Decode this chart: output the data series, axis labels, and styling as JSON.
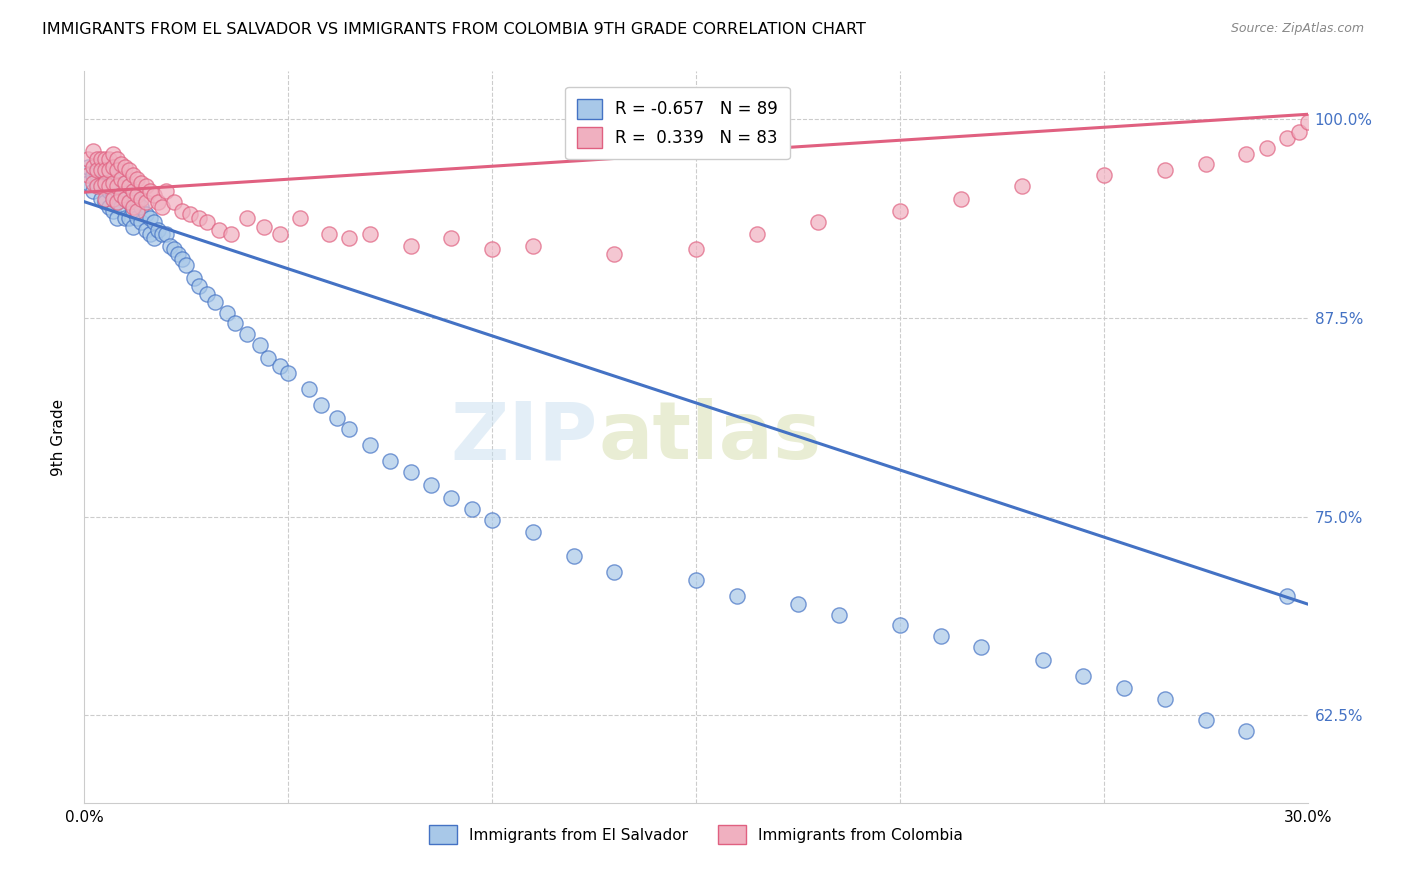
{
  "title": "IMMIGRANTS FROM EL SALVADOR VS IMMIGRANTS FROM COLOMBIA 9TH GRADE CORRELATION CHART",
  "source": "Source: ZipAtlas.com",
  "ylabel": "9th Grade",
  "yticks": [
    "100.0%",
    "87.5%",
    "75.0%",
    "62.5%"
  ],
  "ytick_vals": [
    1.0,
    0.875,
    0.75,
    0.625
  ],
  "legend_el_salvador": "R = -0.657   N = 89",
  "legend_colombia": "R =  0.339   N = 83",
  "legend_label_salvador": "Immigrants from El Salvador",
  "legend_label_colombia": "Immigrants from Colombia",
  "color_salvador": "#a8c8e8",
  "color_colombia": "#f0b0c0",
  "color_salvador_line": "#4472c4",
  "color_colombia_line": "#e06080",
  "watermark_zip": "ZIP",
  "watermark_atlas": "atlas",
  "xlim": [
    0.0,
    0.3
  ],
  "ylim": [
    0.57,
    1.03
  ],
  "salvador_line_x": [
    0.0,
    0.3
  ],
  "salvador_line_y": [
    0.948,
    0.695
  ],
  "colombia_line_x": [
    0.0,
    0.3
  ],
  "colombia_line_y": [
    0.954,
    1.003
  ],
  "salvador_x": [
    0.001,
    0.001,
    0.002,
    0.002,
    0.003,
    0.003,
    0.003,
    0.004,
    0.004,
    0.004,
    0.005,
    0.005,
    0.005,
    0.006,
    0.006,
    0.006,
    0.007,
    0.007,
    0.007,
    0.008,
    0.008,
    0.008,
    0.009,
    0.009,
    0.01,
    0.01,
    0.01,
    0.011,
    0.011,
    0.012,
    0.012,
    0.012,
    0.013,
    0.013,
    0.014,
    0.014,
    0.015,
    0.015,
    0.016,
    0.016,
    0.017,
    0.017,
    0.018,
    0.019,
    0.02,
    0.021,
    0.022,
    0.023,
    0.024,
    0.025,
    0.027,
    0.028,
    0.03,
    0.032,
    0.035,
    0.037,
    0.04,
    0.043,
    0.045,
    0.048,
    0.05,
    0.055,
    0.058,
    0.062,
    0.065,
    0.07,
    0.075,
    0.08,
    0.085,
    0.09,
    0.095,
    0.1,
    0.11,
    0.12,
    0.13,
    0.15,
    0.16,
    0.175,
    0.185,
    0.2,
    0.21,
    0.22,
    0.235,
    0.245,
    0.255,
    0.265,
    0.275,
    0.285,
    0.295
  ],
  "salvador_y": [
    0.97,
    0.96,
    0.965,
    0.955,
    0.97,
    0.965,
    0.96,
    0.97,
    0.96,
    0.95,
    0.968,
    0.958,
    0.948,
    0.965,
    0.955,
    0.945,
    0.962,
    0.952,
    0.942,
    0.958,
    0.948,
    0.938,
    0.955,
    0.945,
    0.96,
    0.95,
    0.938,
    0.948,
    0.938,
    0.952,
    0.942,
    0.932,
    0.948,
    0.938,
    0.945,
    0.935,
    0.94,
    0.93,
    0.938,
    0.928,
    0.935,
    0.925,
    0.93,
    0.928,
    0.928,
    0.92,
    0.918,
    0.915,
    0.912,
    0.908,
    0.9,
    0.895,
    0.89,
    0.885,
    0.878,
    0.872,
    0.865,
    0.858,
    0.85,
    0.845,
    0.84,
    0.83,
    0.82,
    0.812,
    0.805,
    0.795,
    0.785,
    0.778,
    0.77,
    0.762,
    0.755,
    0.748,
    0.74,
    0.725,
    0.715,
    0.71,
    0.7,
    0.695,
    0.688,
    0.682,
    0.675,
    0.668,
    0.66,
    0.65,
    0.642,
    0.635,
    0.622,
    0.615,
    0.7
  ],
  "colombia_x": [
    0.001,
    0.001,
    0.002,
    0.002,
    0.002,
    0.003,
    0.003,
    0.003,
    0.004,
    0.004,
    0.004,
    0.005,
    0.005,
    0.005,
    0.005,
    0.006,
    0.006,
    0.006,
    0.007,
    0.007,
    0.007,
    0.007,
    0.008,
    0.008,
    0.008,
    0.008,
    0.009,
    0.009,
    0.009,
    0.01,
    0.01,
    0.01,
    0.011,
    0.011,
    0.011,
    0.012,
    0.012,
    0.012,
    0.013,
    0.013,
    0.013,
    0.014,
    0.014,
    0.015,
    0.015,
    0.016,
    0.017,
    0.018,
    0.019,
    0.02,
    0.022,
    0.024,
    0.026,
    0.028,
    0.03,
    0.033,
    0.036,
    0.04,
    0.044,
    0.048,
    0.053,
    0.06,
    0.065,
    0.07,
    0.08,
    0.09,
    0.1,
    0.11,
    0.13,
    0.15,
    0.165,
    0.18,
    0.2,
    0.215,
    0.23,
    0.25,
    0.265,
    0.275,
    0.285,
    0.29,
    0.295,
    0.298,
    0.3
  ],
  "colombia_y": [
    0.975,
    0.965,
    0.98,
    0.97,
    0.96,
    0.975,
    0.968,
    0.958,
    0.975,
    0.968,
    0.958,
    0.975,
    0.968,
    0.96,
    0.95,
    0.975,
    0.968,
    0.958,
    0.978,
    0.97,
    0.96,
    0.95,
    0.975,
    0.968,
    0.958,
    0.948,
    0.972,
    0.962,
    0.952,
    0.97,
    0.96,
    0.95,
    0.968,
    0.958,
    0.948,
    0.965,
    0.955,
    0.945,
    0.962,
    0.952,
    0.942,
    0.96,
    0.95,
    0.958,
    0.948,
    0.955,
    0.952,
    0.948,
    0.945,
    0.955,
    0.948,
    0.942,
    0.94,
    0.938,
    0.935,
    0.93,
    0.928,
    0.938,
    0.932,
    0.928,
    0.938,
    0.928,
    0.925,
    0.928,
    0.92,
    0.925,
    0.918,
    0.92,
    0.915,
    0.918,
    0.928,
    0.935,
    0.942,
    0.95,
    0.958,
    0.965,
    0.968,
    0.972,
    0.978,
    0.982,
    0.988,
    0.992,
    0.998
  ]
}
